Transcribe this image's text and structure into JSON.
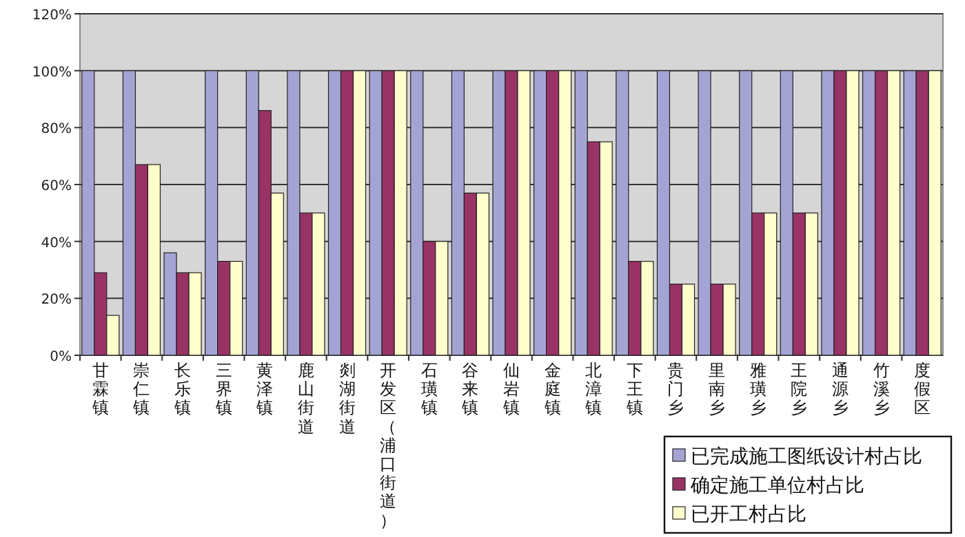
{
  "chart_data": {
    "type": "bar",
    "categories": [
      "甘霖镇",
      "崇仁镇",
      "长乐镇",
      "三界镇",
      "黄泽镇",
      "鹿山街道",
      "剡湖街道",
      "开发区（浦口街道）",
      "石璜镇",
      "谷来镇",
      "仙岩镇",
      "金庭镇",
      "北漳镇",
      "下王镇",
      "贵门乡",
      "里南乡",
      "雅璜乡",
      "王院乡",
      "通源乡",
      "竹溪乡",
      "度假区"
    ],
    "series": [
      {
        "name": "已完成施工图纸设计村占比",
        "color": "#a4a4d4",
        "values": [
          100,
          100,
          36,
          100,
          100,
          100,
          100,
          100,
          100,
          100,
          100,
          100,
          100,
          100,
          100,
          100,
          100,
          100,
          100,
          100,
          100
        ]
      },
      {
        "name": "确定施工单位村占比",
        "color": "#993366",
        "values": [
          29,
          67,
          29,
          33,
          86,
          50,
          100,
          100,
          40,
          57,
          100,
          100,
          75,
          33,
          25,
          25,
          50,
          50,
          100,
          100,
          100
        ]
      },
      {
        "name": "已开工村占比",
        "color": "#ffffcc",
        "values": [
          14,
          67,
          29,
          33,
          57,
          50,
          100,
          100,
          40,
          57,
          100,
          100,
          75,
          33,
          25,
          25,
          50,
          50,
          100,
          100,
          100
        ]
      }
    ],
    "ylim": [
      0,
      120
    ],
    "yticks": [
      {
        "value": 0,
        "label": "0%"
      },
      {
        "value": 20,
        "label": "20%"
      },
      {
        "value": 40,
        "label": "40%"
      },
      {
        "value": 60,
        "label": "60%"
      },
      {
        "value": 80,
        "label": "80%"
      },
      {
        "value": 100,
        "label": "100%"
      },
      {
        "value": 120,
        "label": "120%"
      }
    ],
    "grid": "y",
    "legend": "bottom right"
  }
}
